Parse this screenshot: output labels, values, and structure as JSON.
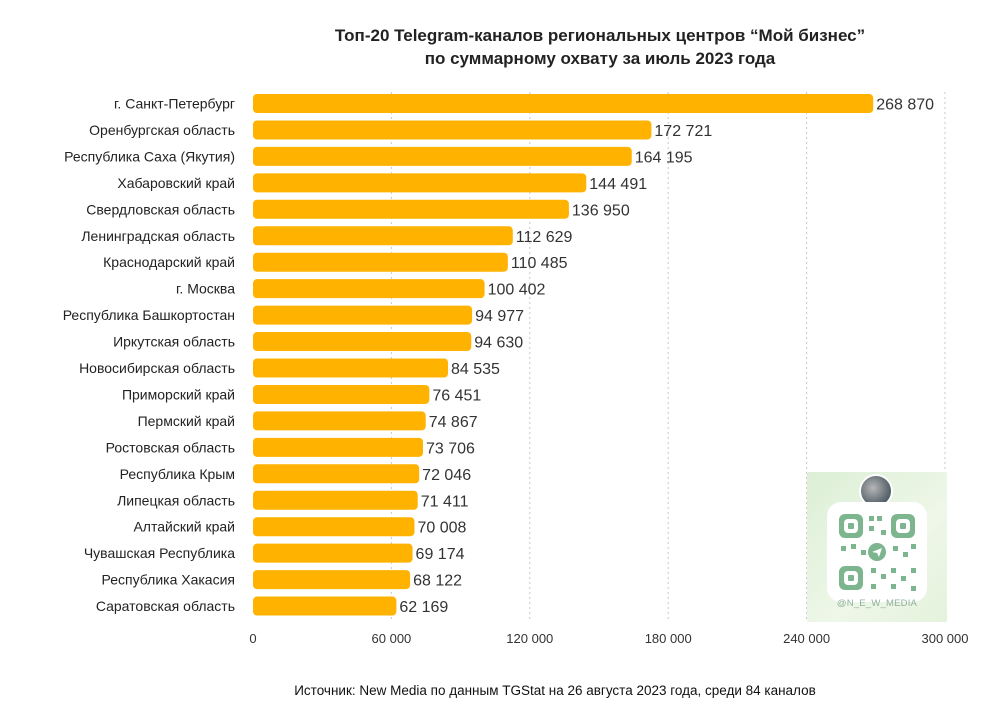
{
  "title_line1": "Топ-20 Telegram-каналов региональных центров “Мой бизнес”",
  "title_line2": "по суммарному охвату за июль 2023 года",
  "source": "Источник: New Media по данным TGStat на 26 августа 2023 года, среди 84 каналов",
  "qr_handle": "@N_E_W_MEDIA",
  "chart_data": {
    "type": "bar",
    "orientation": "horizontal",
    "categories": [
      "г. Санкт-Петербург",
      "Оренбургская область",
      "Республика Саха (Якутия)",
      "Хабаровский край",
      "Свердловская область",
      "Ленинградская область",
      "Краснодарский край",
      "г. Москва",
      "Республика Башкортостан",
      "Иркутская область",
      "Новосибирская область",
      "Приморский край",
      "Пермский край",
      "Ростовская область",
      "Республика Крым",
      "Липецкая область",
      "Алтайский край",
      "Чувашская Республика",
      "Республика Хакасия",
      "Саратовская область"
    ],
    "values": [
      268870,
      172721,
      164195,
      144491,
      136950,
      112629,
      110485,
      100402,
      94977,
      94630,
      84535,
      76451,
      74867,
      73706,
      72046,
      71411,
      70008,
      69174,
      68122,
      62169
    ],
    "value_labels": [
      "268 870",
      "172 721",
      "164 195",
      "144 491",
      "136 950",
      "112 629",
      "110 485",
      "100 402",
      "94 977",
      "94 630",
      "84 535",
      "76 451",
      "74 867",
      "73 706",
      "72 046",
      "71 411",
      "70 008",
      "69 174",
      "68 122",
      "62 169"
    ],
    "xlim": [
      0,
      300000
    ],
    "xticks": [
      0,
      60000,
      120000,
      180000,
      240000,
      300000
    ],
    "xtick_labels": [
      "0",
      "60 000",
      "120 000",
      "180 000",
      "240 000",
      "300 000"
    ],
    "grid": "vertical dashed",
    "colors": {
      "bar": "#FFB300",
      "grid": "#c8c8c8",
      "text": "#222222"
    }
  }
}
